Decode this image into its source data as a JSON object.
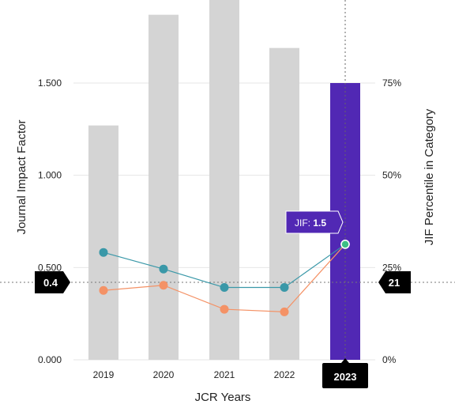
{
  "chart_data": {
    "type": "bar",
    "categories": [
      "2019",
      "2020",
      "2021",
      "2022",
      "2023"
    ],
    "series": [
      {
        "values": [
          1.27,
          1.87,
          1.95,
          1.69,
          1.5
        ],
        "axis": "left",
        "kind": "bar"
      },
      {
        "values": [
          29.1,
          24.6,
          19.6,
          19.6,
          31.3
        ],
        "axis": "right",
        "kind": "line"
      },
      {
        "values": [
          18.8,
          20.2,
          13.7,
          13.0,
          31.3
        ],
        "axis": "right",
        "kind": "line"
      }
    ],
    "xlabel": "JCR Years",
    "ylabel": "Journal Impact Factor",
    "y2label": "JIF Percentile in Category",
    "ylim": [
      0,
      1.95
    ],
    "y2lim": [
      0,
      97.5
    ],
    "yticks": [
      "0.000",
      "0.500",
      "1.000",
      "1.500"
    ],
    "y2ticks": [
      "0%",
      "25%",
      "50%",
      "75%"
    ],
    "highlight": {
      "category": "2023",
      "label": "2023"
    },
    "tooltip": {
      "label": "JIF:",
      "value": "1.5"
    },
    "crosshair": {
      "left_label": "0.4",
      "right_label": "21",
      "left_value": 0.42
    },
    "colors": {
      "bar": "#d4d4d4",
      "highlight_bar": "#5128b4",
      "line_teal": "#3a98a8",
      "line_orange": "#f49266",
      "active_point": "#3bbf85",
      "grid": "#e6e6e6",
      "flag": "#000000"
    }
  }
}
